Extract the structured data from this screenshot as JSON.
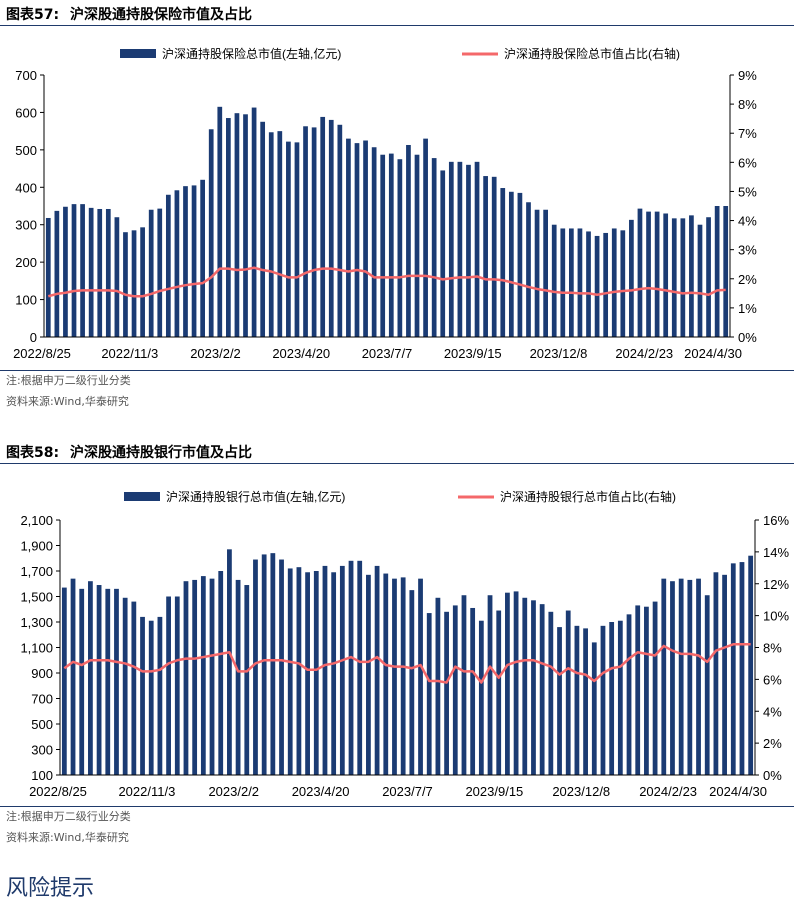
{
  "colors": {
    "bar": "#1b3b73",
    "line": "#f4686a",
    "axis": "#000000",
    "rule": "#1f3a6b",
    "heading": "#1f3a6b"
  },
  "figure57": {
    "label": "图表57:",
    "title": "沪深股通持股保险市值及占比",
    "note": "注:根据申万二级行业分类",
    "source": "资料来源:Wind,华泰研究"
  },
  "figure58": {
    "label": "图表58:",
    "title": "沪深股通持股银行市值及占比",
    "note": "注:根据申万二级行业分类",
    "source": "资料来源:Wind,华泰研究"
  },
  "risk_heading": "风险提示",
  "chart_data": [
    {
      "type": "bar",
      "legend": [
        "沪深通持股保险总市值(左轴,亿元)",
        "沪深通持股保险总市值占比(右轴)"
      ],
      "x_tick_labels": [
        "2022/8/25",
        "2022/11/3",
        "2023/2/2",
        "2023/4/20",
        "2023/7/7",
        "2023/9/15",
        "2023/12/8",
        "2024/2/23",
        "2024/4/30"
      ],
      "y_left_ticks": [
        "0",
        "100",
        "200",
        "300",
        "400",
        "500",
        "600",
        "700"
      ],
      "y_left_range": [
        0,
        700
      ],
      "y_right_ticks": [
        "0%",
        "1%",
        "2%",
        "3%",
        "4%",
        "5%",
        "6%",
        "7%",
        "8%",
        "9%"
      ],
      "y_right_range": [
        0,
        9
      ],
      "series": [
        {
          "name": "沪深通持股保险总市值(左轴,亿元)",
          "type": "bar",
          "axis": "left",
          "values": [
            318,
            337,
            348,
            355,
            355,
            345,
            342,
            342,
            320,
            280,
            285,
            293,
            340,
            343,
            380,
            392,
            403,
            405,
            420,
            555,
            615,
            585,
            598,
            595,
            613,
            575,
            547,
            550,
            522,
            520,
            563,
            560,
            588,
            580,
            567,
            530,
            518,
            525,
            507,
            487,
            490,
            475,
            513,
            487,
            530,
            478,
            445,
            468,
            468,
            460,
            468,
            430,
            428,
            398,
            388,
            385,
            360,
            340,
            340,
            300,
            290,
            290,
            290,
            282,
            270,
            278,
            290,
            285,
            313,
            343,
            335,
            335,
            330,
            317,
            317,
            325,
            300,
            320,
            350,
            350
          ]
        },
        {
          "name": "沪深通持股保险总市值占比(右轴)",
          "type": "line",
          "axis": "right",
          "values": [
            1.4,
            1.48,
            1.52,
            1.58,
            1.6,
            1.6,
            1.6,
            1.6,
            1.58,
            1.45,
            1.4,
            1.4,
            1.48,
            1.58,
            1.65,
            1.72,
            1.78,
            1.82,
            1.85,
            2.05,
            2.35,
            2.35,
            2.3,
            2.32,
            2.38,
            2.3,
            2.25,
            2.15,
            2.05,
            2.05,
            2.2,
            2.3,
            2.35,
            2.35,
            2.3,
            2.25,
            2.3,
            2.25,
            2.05,
            2.05,
            2.05,
            2.05,
            2.1,
            2.1,
            2.1,
            2.05,
            1.98,
            2.02,
            2.05,
            2.05,
            2.08,
            1.98,
            1.98,
            1.95,
            1.88,
            1.8,
            1.72,
            1.65,
            1.6,
            1.55,
            1.52,
            1.52,
            1.5,
            1.5,
            1.45,
            1.5,
            1.55,
            1.58,
            1.6,
            1.65,
            1.68,
            1.65,
            1.6,
            1.55,
            1.5,
            1.52,
            1.5,
            1.45,
            1.6,
            1.62
          ]
        }
      ]
    },
    {
      "type": "bar",
      "legend": [
        "沪深通持股银行总市值(左轴,亿元)",
        "沪深通持股银行总市值占比(右轴)"
      ],
      "x_tick_labels": [
        "2022/8/25",
        "2022/11/3",
        "2023/2/2",
        "2023/4/20",
        "2023/7/7",
        "2023/9/15",
        "2023/12/8",
        "2024/2/23",
        "2024/4/30"
      ],
      "y_left_ticks": [
        "100",
        "300",
        "500",
        "700",
        "900",
        "1,100",
        "1,300",
        "1,500",
        "1,700",
        "1,900",
        "2,100"
      ],
      "y_left_range": [
        100,
        2100
      ],
      "y_right_ticks": [
        "0%",
        "2%",
        "4%",
        "6%",
        "8%",
        "10%",
        "12%",
        "14%",
        "16%"
      ],
      "y_right_range": [
        0,
        16
      ],
      "series": [
        {
          "name": "沪深通持股银行总市值(左轴,亿元)",
          "type": "bar",
          "axis": "left",
          "values": [
            1570,
            1640,
            1560,
            1620,
            1590,
            1560,
            1560,
            1490,
            1460,
            1340,
            1310,
            1340,
            1500,
            1500,
            1620,
            1630,
            1660,
            1640,
            1700,
            1870,
            1630,
            1590,
            1790,
            1830,
            1840,
            1790,
            1720,
            1730,
            1690,
            1700,
            1740,
            1690,
            1740,
            1780,
            1780,
            1670,
            1740,
            1680,
            1640,
            1650,
            1550,
            1640,
            1370,
            1490,
            1380,
            1430,
            1510,
            1410,
            1310,
            1510,
            1390,
            1530,
            1540,
            1490,
            1470,
            1440,
            1380,
            1260,
            1390,
            1270,
            1250,
            1140,
            1270,
            1300,
            1310,
            1360,
            1430,
            1420,
            1460,
            1640,
            1620,
            1640,
            1630,
            1640,
            1510,
            1690,
            1670,
            1760,
            1770,
            1820
          ]
        },
        {
          "name": "沪深通持股银行总市值占比(右轴)",
          "type": "line",
          "axis": "right",
          "values": [
            6.7,
            7.1,
            6.9,
            7.2,
            7.2,
            7.2,
            7.1,
            7.0,
            6.8,
            6.5,
            6.5,
            6.6,
            7.0,
            7.2,
            7.3,
            7.3,
            7.4,
            7.5,
            7.6,
            7.7,
            6.5,
            6.5,
            7.0,
            7.2,
            7.2,
            7.2,
            7.1,
            7.0,
            6.6,
            6.6,
            6.9,
            7.0,
            7.2,
            7.4,
            7.1,
            7.1,
            7.4,
            6.9,
            6.8,
            6.8,
            6.7,
            6.9,
            5.9,
            5.9,
            5.8,
            6.8,
            6.5,
            6.5,
            5.8,
            6.8,
            6.1,
            6.9,
            7.1,
            7.2,
            7.2,
            7.0,
            6.8,
            6.3,
            6.7,
            6.4,
            6.3,
            5.9,
            6.4,
            6.7,
            6.8,
            7.3,
            7.7,
            7.6,
            7.5,
            8.1,
            7.8,
            7.6,
            7.6,
            7.5,
            7.1,
            7.8,
            8.0,
            8.2,
            8.2,
            8.2
          ]
        }
      ]
    }
  ]
}
